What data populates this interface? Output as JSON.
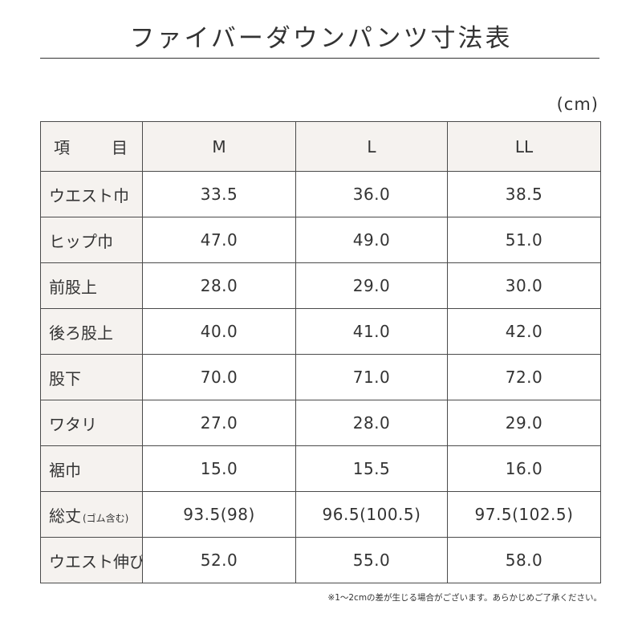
{
  "title": "ファイバーダウンパンツ寸法表",
  "unit": "(cm)",
  "table": {
    "head": {
      "item_c1": "項",
      "item_c2": "目",
      "sizes": [
        "M",
        "L",
        "LL"
      ]
    },
    "rows": [
      {
        "label": "ウエスト巾",
        "sub": "",
        "values": [
          "33.5",
          "36.0",
          "38.5"
        ]
      },
      {
        "label": "ヒップ巾",
        "sub": "",
        "values": [
          "47.0",
          "49.0",
          "51.0"
        ]
      },
      {
        "label": "前股上",
        "sub": "",
        "values": [
          "28.0",
          "29.0",
          "30.0"
        ]
      },
      {
        "label": "後ろ股上",
        "sub": "",
        "values": [
          "40.0",
          "41.0",
          "42.0"
        ]
      },
      {
        "label": "股下",
        "sub": "",
        "values": [
          "70.0",
          "71.0",
          "72.0"
        ]
      },
      {
        "label": "ワタリ",
        "sub": "",
        "values": [
          "27.0",
          "28.0",
          "29.0"
        ]
      },
      {
        "label": "裾巾",
        "sub": "",
        "values": [
          "15.0",
          "15.5",
          "16.0"
        ]
      },
      {
        "label": "総丈",
        "sub": "(ゴム含む)",
        "values": [
          "93.5(98)",
          "96.5(100.5)",
          "97.5(102.5)"
        ]
      },
      {
        "label": "ウエスト伸び",
        "sub": "",
        "values": [
          "52.0",
          "55.0",
          "58.0"
        ]
      }
    ]
  },
  "footnote": "※1〜2cmの差が生じる場合がございます。あらかじめご了承ください。",
  "colors": {
    "text": "#333333",
    "border": "#4a4a4a",
    "header_bg": "#f5f2ef",
    "background": "#ffffff"
  }
}
